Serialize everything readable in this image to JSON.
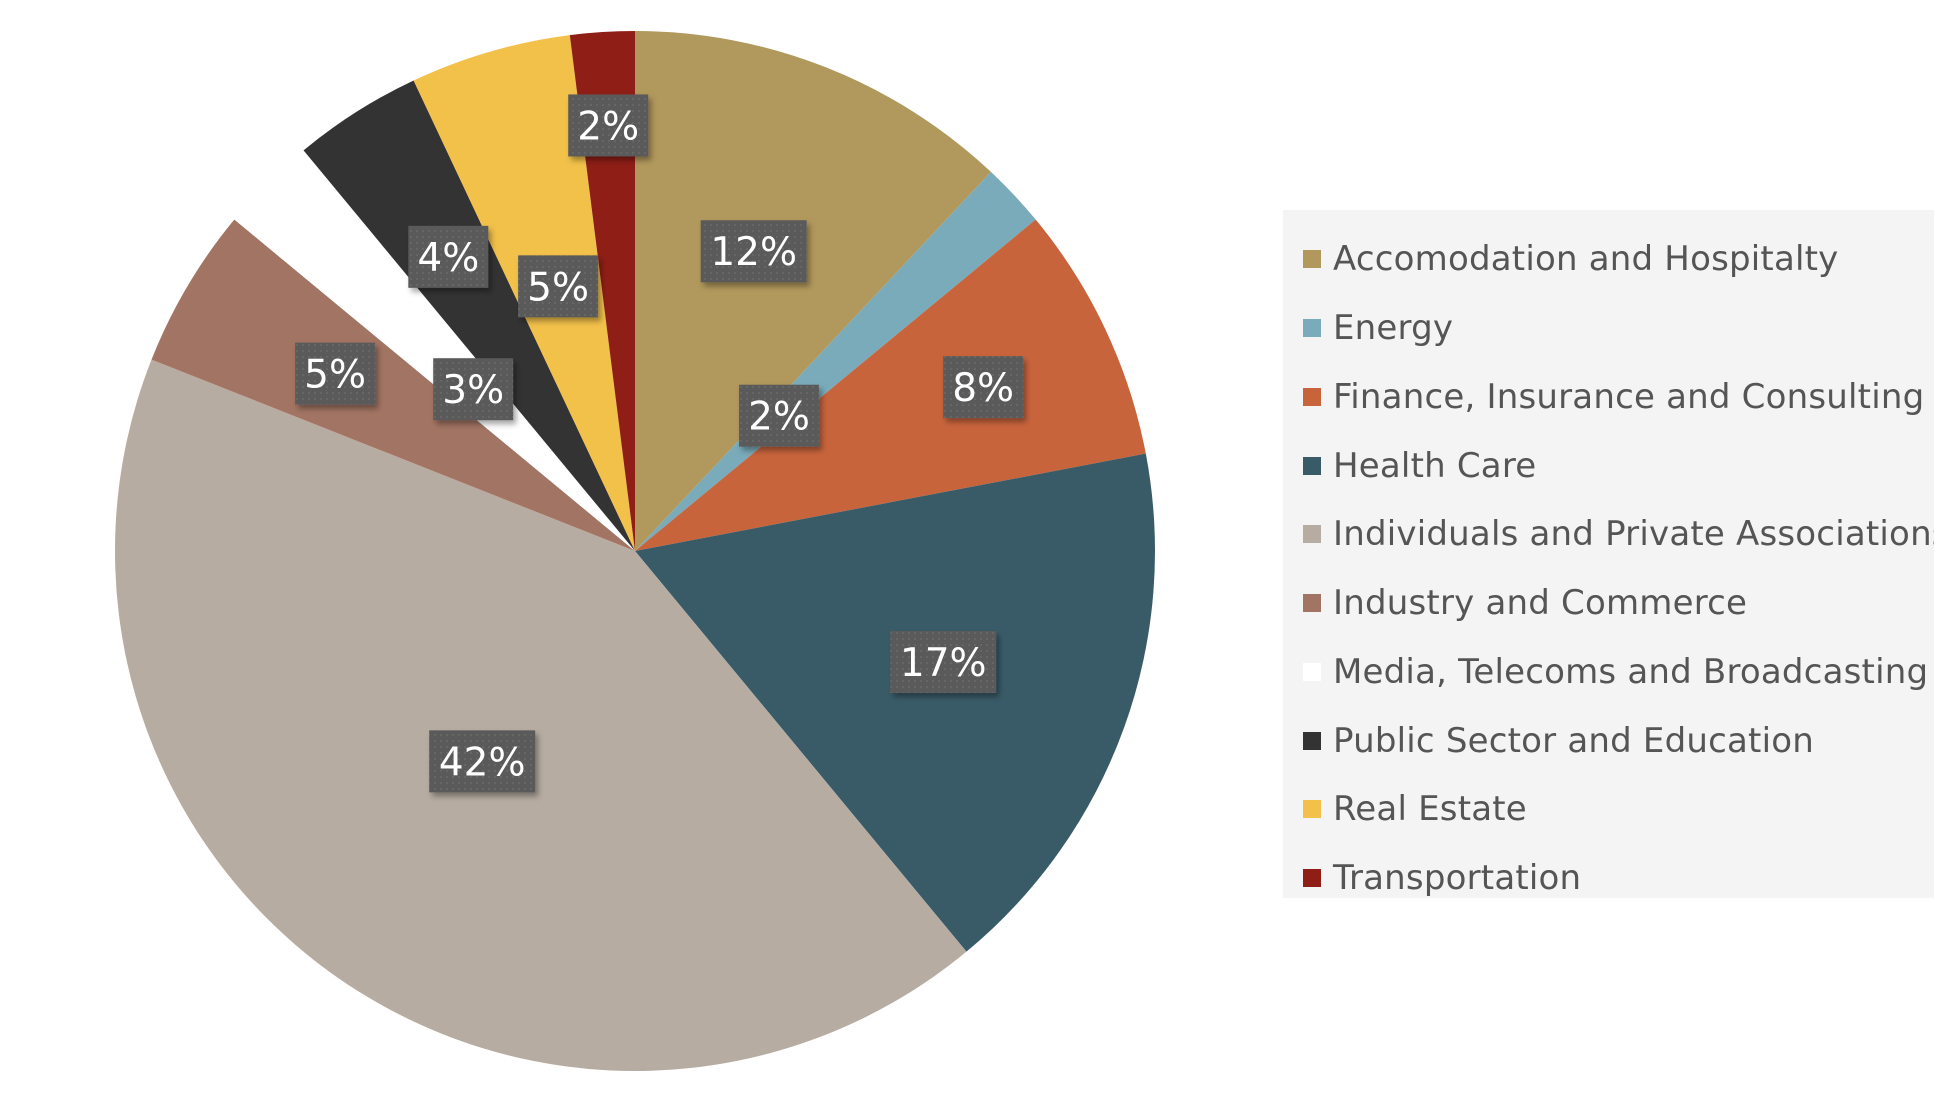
{
  "chart_data": {
    "type": "pie",
    "title": "",
    "legend_position": "right",
    "slices": [
      {
        "label": "Accomodation and Hospitalty",
        "value": 12,
        "data_label": "12%",
        "color": "#b1985c"
      },
      {
        "label": "Energy",
        "value": 2,
        "data_label": "2%",
        "color": "#79abbb"
      },
      {
        "label": "Finance, Insurance and Consulting",
        "value": 8,
        "data_label": "8%",
        "color": "#c8643c"
      },
      {
        "label": "Health Care",
        "value": 17,
        "data_label": "17%",
        "color": "#395b68"
      },
      {
        "label": "Individuals and Private Associations",
        "value": 42,
        "data_label": "42%",
        "color": "#b6aca1"
      },
      {
        "label": "Industry and Commerce",
        "value": 5,
        "data_label": "5%",
        "color": "#a27463"
      },
      {
        "label": "Media, Telecoms and Broadcasting",
        "value": 3,
        "data_label": "3%",
        "color": "#ffffff"
      },
      {
        "label": "Public Sector and Education",
        "value": 4,
        "data_label": "4%",
        "color": "#333333"
      },
      {
        "label": "Real Estate",
        "value": 5,
        "data_label": "5%",
        "color": "#f2c14a"
      },
      {
        "label": "Transportation",
        "value": 2,
        "data_label": "2%",
        "color": "#8e1e16"
      }
    ]
  }
}
